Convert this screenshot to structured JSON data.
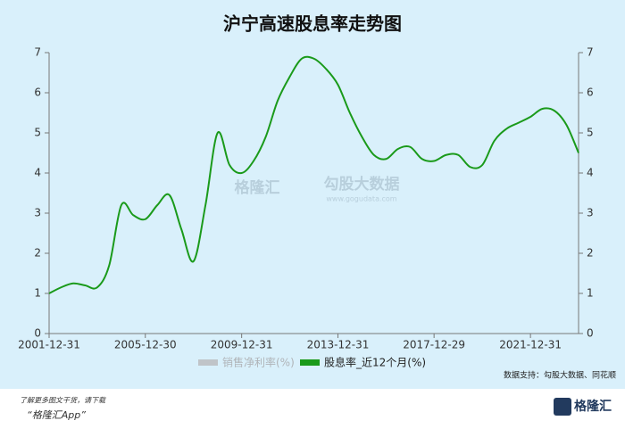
{
  "chart_data": {
    "type": "line",
    "title": "沪宁高速股息率走势图",
    "x": [
      "2001-12-31",
      "2002-06-30",
      "2002-12-31",
      "2003-06-30",
      "2003-12-31",
      "2004-06-30",
      "2004-12-31",
      "2005-06-30",
      "2005-12-30",
      "2006-06-30",
      "2006-12-31",
      "2007-06-30",
      "2007-12-31",
      "2008-06-30",
      "2008-12-31",
      "2009-06-30",
      "2009-12-31",
      "2010-06-30",
      "2010-12-31",
      "2011-06-30",
      "2011-12-31",
      "2012-06-30",
      "2012-12-31",
      "2013-06-30",
      "2013-12-31",
      "2014-06-30",
      "2014-12-31",
      "2015-06-30",
      "2015-12-31",
      "2016-06-30",
      "2016-12-31",
      "2017-06-30",
      "2017-12-29",
      "2018-06-30",
      "2018-12-31",
      "2019-06-30",
      "2019-12-31",
      "2020-06-30",
      "2020-12-31",
      "2021-06-30",
      "2021-12-31",
      "2022-06-30",
      "2022-12-31",
      "2023-06-30",
      "2023-12-31"
    ],
    "series": [
      {
        "name": "销售净利率(%)",
        "color": "#c0c4c8",
        "values": [
          null,
          null,
          null,
          null,
          null,
          null,
          null,
          null,
          null,
          null,
          null,
          null,
          null,
          null,
          null,
          null,
          null,
          null,
          null,
          null,
          null,
          null,
          null,
          null,
          null,
          null,
          null,
          null,
          null,
          null,
          null,
          null,
          null,
          null,
          null,
          null,
          null,
          null,
          null,
          null,
          null,
          null,
          null,
          null,
          null
        ]
      },
      {
        "name": "股息率_近12个月(%)",
        "color": "#1a9a1a",
        "values": [
          1.0,
          1.15,
          1.25,
          1.2,
          1.15,
          1.7,
          3.2,
          2.95,
          2.85,
          3.2,
          3.45,
          2.6,
          1.8,
          3.2,
          5.0,
          4.2,
          4.0,
          4.3,
          4.9,
          5.8,
          6.4,
          6.85,
          6.85,
          6.6,
          6.2,
          5.5,
          4.9,
          4.45,
          4.35,
          4.6,
          4.65,
          4.35,
          4.3,
          4.45,
          4.45,
          4.15,
          4.2,
          4.8,
          5.1,
          5.25,
          5.4,
          5.6,
          5.55,
          5.2,
          4.5
        ]
      }
    ],
    "xlim": [
      "2001-12-31",
      "2023-12-31"
    ],
    "xticks": [
      "2001-12-31",
      "2005-12-30",
      "2009-12-31",
      "2013-12-31",
      "2017-12-29",
      "2021-12-31"
    ],
    "ylim": [
      0,
      7
    ],
    "yticks": [
      0,
      1,
      2,
      3,
      4,
      5,
      6,
      7
    ],
    "y2lim": [
      0,
      7
    ],
    "y2ticks": [
      0,
      1,
      2,
      3,
      4,
      5,
      6,
      7
    ],
    "watermark": [
      "格隆汇",
      "勾股大数据",
      "www.gogudata.com"
    ],
    "source": "数据支持：勾股大数据、同花顺",
    "footer": [
      "了解更多图文干货，请下载",
      "“格隆汇App”"
    ],
    "logo": "格隆汇"
  }
}
